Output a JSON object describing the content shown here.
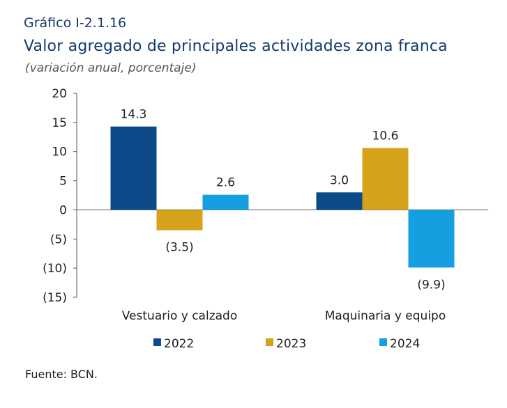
{
  "header": {
    "kicker": "Gráfico I-2.1.16",
    "title": "Valor agregado de principales actividades zona franca",
    "subtitle": "(variación anual, porcentaje)"
  },
  "footer": {
    "source": "Fuente: BCN."
  },
  "chart_data": {
    "type": "bar",
    "categories": [
      "Vestuario y calzado",
      "Maquinaria y equipo"
    ],
    "series": [
      {
        "name": "2022",
        "color": "#0c4a8a",
        "values": [
          14.3,
          3.0
        ],
        "labels": [
          "14.3",
          "3.0"
        ]
      },
      {
        "name": "2023",
        "color": "#d5a21a",
        "values": [
          -3.5,
          10.6
        ],
        "labels": [
          "(3.5)",
          "10.6"
        ]
      },
      {
        "name": "2024",
        "color": "#159ee0",
        "values": [
          2.6,
          -9.9
        ],
        "labels": [
          "2.6",
          "(9.9)"
        ]
      }
    ],
    "ylim": [
      -15,
      20
    ],
    "yticks": [
      20,
      15,
      10,
      5,
      0,
      -5,
      -10,
      -15
    ],
    "ytick_labels": [
      "20",
      "15",
      "10",
      "5",
      "0",
      "(5)",
      "(10)",
      "(15)"
    ],
    "grid": false,
    "legend": "bottom"
  }
}
